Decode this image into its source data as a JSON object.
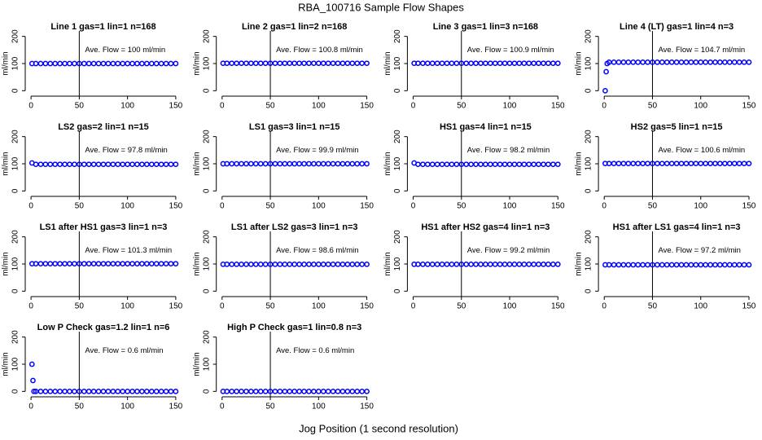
{
  "title": "RBA_100716  Sample Flow Shapes",
  "xlabel": "Jog Position (1 second resolution)",
  "chart_data": [
    {
      "type": "scatter",
      "title": "Line 1 gas=1 lin=1 n=168",
      "annotation": "Ave. Flow =  100  ml/min",
      "ylabel": "ml/min",
      "x": [
        1,
        5,
        10,
        15,
        20,
        25,
        30,
        35,
        40,
        45,
        50,
        55,
        60,
        65,
        70,
        75,
        80,
        85,
        90,
        95,
        100,
        105,
        110,
        115,
        120,
        125,
        130,
        135,
        140,
        145,
        150
      ],
      "values": [
        100,
        100,
        100,
        100,
        100,
        100,
        100,
        100,
        100,
        100,
        100,
        100,
        100,
        100,
        100,
        100,
        100,
        100,
        100,
        100,
        100,
        100,
        100,
        100,
        100,
        100,
        100,
        100,
        100,
        100,
        100
      ],
      "color": "#0000ff",
      "vline": 50,
      "xlim": [
        -6,
        156
      ],
      "ylim": [
        -20,
        220
      ],
      "xticks": [
        0,
        50,
        100,
        150
      ],
      "yticks": [
        0,
        100,
        200
      ]
    },
    {
      "type": "scatter",
      "title": "Line 2 gas=1 lin=2 n=168",
      "annotation": "Ave. Flow =  100.8  ml/min",
      "ylabel": "ml/min",
      "x": [
        1,
        5,
        10,
        15,
        20,
        25,
        30,
        35,
        40,
        45,
        50,
        55,
        60,
        65,
        70,
        75,
        80,
        85,
        90,
        95,
        100,
        105,
        110,
        115,
        120,
        125,
        130,
        135,
        140,
        145,
        150
      ],
      "values": [
        101,
        101,
        101,
        101,
        101,
        101,
        101,
        101,
        101,
        101,
        101,
        101,
        101,
        101,
        101,
        101,
        101,
        101,
        101,
        101,
        101,
        101,
        101,
        101,
        101,
        101,
        101,
        101,
        101,
        101,
        101
      ],
      "color": "#0000ff",
      "vline": 50,
      "xlim": [
        -6,
        156
      ],
      "ylim": [
        -20,
        220
      ],
      "xticks": [
        0,
        50,
        100,
        150
      ],
      "yticks": [
        0,
        100,
        200
      ]
    },
    {
      "type": "scatter",
      "title": "Line 3 gas=1 lin=3 n=168",
      "annotation": "Ave. Flow =  100.9  ml/min",
      "ylabel": "ml/min",
      "x": [
        1,
        5,
        10,
        15,
        20,
        25,
        30,
        35,
        40,
        45,
        50,
        55,
        60,
        65,
        70,
        75,
        80,
        85,
        90,
        95,
        100,
        105,
        110,
        115,
        120,
        125,
        130,
        135,
        140,
        145,
        150
      ],
      "values": [
        101,
        101,
        101,
        101,
        101,
        101,
        101,
        101,
        101,
        101,
        101,
        101,
        101,
        101,
        101,
        101,
        101,
        101,
        101,
        101,
        101,
        101,
        101,
        101,
        101,
        101,
        101,
        101,
        101,
        101,
        101
      ],
      "color": "#0000ff",
      "vline": 50,
      "xlim": [
        -6,
        156
      ],
      "ylim": [
        -20,
        220
      ],
      "xticks": [
        0,
        50,
        100,
        150
      ],
      "yticks": [
        0,
        100,
        200
      ]
    },
    {
      "type": "scatter",
      "title": "Line 4 (LT) gas=1 lin=4 n=3",
      "annotation": "Ave. Flow =  104.7  ml/min",
      "ylabel": "ml/min",
      "x": [
        1,
        2,
        3,
        5,
        10,
        15,
        20,
        25,
        30,
        35,
        40,
        45,
        50,
        55,
        60,
        65,
        70,
        75,
        80,
        85,
        90,
        95,
        100,
        105,
        110,
        115,
        120,
        125,
        130,
        135,
        140,
        145,
        150
      ],
      "values": [
        0,
        70,
        100,
        105,
        105,
        105,
        105,
        105,
        105,
        105,
        105,
        105,
        105,
        105,
        105,
        105,
        105,
        105,
        105,
        105,
        105,
        105,
        105,
        105,
        105,
        105,
        105,
        105,
        105,
        105,
        105,
        105,
        105
      ],
      "color": "#0000ff",
      "vline": 50,
      "xlim": [
        -6,
        156
      ],
      "ylim": [
        -20,
        220
      ],
      "xticks": [
        0,
        50,
        100,
        150
      ],
      "yticks": [
        0,
        100,
        200
      ]
    },
    {
      "type": "scatter",
      "title": "LS2 gas=2 lin=1 n=15",
      "annotation": "Ave. Flow =  97.8  ml/min",
      "ylabel": "ml/min",
      "x": [
        1,
        5,
        10,
        15,
        20,
        25,
        30,
        35,
        40,
        45,
        50,
        55,
        60,
        65,
        70,
        75,
        80,
        85,
        90,
        95,
        100,
        105,
        110,
        115,
        120,
        125,
        130,
        135,
        140,
        145,
        150
      ],
      "values": [
        103,
        98,
        98,
        98,
        98,
        98,
        98,
        98,
        98,
        98,
        98,
        98,
        98,
        98,
        98,
        98,
        98,
        98,
        98,
        98,
        98,
        98,
        98,
        98,
        98,
        98,
        98,
        98,
        98,
        98,
        98
      ],
      "color": "#0000ff",
      "vline": 50,
      "xlim": [
        -6,
        156
      ],
      "ylim": [
        -20,
        220
      ],
      "xticks": [
        0,
        50,
        100,
        150
      ],
      "yticks": [
        0,
        100,
        200
      ]
    },
    {
      "type": "scatter",
      "title": "LS1 gas=3 lin=1 n=15",
      "annotation": "Ave. Flow =  99.9  ml/min",
      "ylabel": "ml/min",
      "x": [
        1,
        5,
        10,
        15,
        20,
        25,
        30,
        35,
        40,
        45,
        50,
        55,
        60,
        65,
        70,
        75,
        80,
        85,
        90,
        95,
        100,
        105,
        110,
        115,
        120,
        125,
        130,
        135,
        140,
        145,
        150
      ],
      "values": [
        100,
        100,
        100,
        100,
        100,
        100,
        100,
        100,
        100,
        100,
        100,
        100,
        100,
        100,
        100,
        100,
        100,
        100,
        100,
        100,
        100,
        100,
        100,
        100,
        100,
        100,
        100,
        100,
        100,
        100,
        100
      ],
      "color": "#0000ff",
      "vline": 50,
      "xlim": [
        -6,
        156
      ],
      "ylim": [
        -20,
        220
      ],
      "xticks": [
        0,
        50,
        100,
        150
      ],
      "yticks": [
        0,
        100,
        200
      ]
    },
    {
      "type": "scatter",
      "title": "HS1 gas=4 lin=1 n=15",
      "annotation": "Ave. Flow =  98.2  ml/min",
      "ylabel": "ml/min",
      "x": [
        1,
        5,
        10,
        15,
        20,
        25,
        30,
        35,
        40,
        45,
        50,
        55,
        60,
        65,
        70,
        75,
        80,
        85,
        90,
        95,
        100,
        105,
        110,
        115,
        120,
        125,
        130,
        135,
        140,
        145,
        150
      ],
      "values": [
        103,
        98,
        98,
        98,
        98,
        98,
        98,
        98,
        98,
        98,
        98,
        98,
        98,
        98,
        98,
        98,
        98,
        98,
        98,
        98,
        98,
        98,
        98,
        98,
        98,
        98,
        98,
        98,
        98,
        98,
        98
      ],
      "color": "#0000ff",
      "vline": 50,
      "xlim": [
        -6,
        156
      ],
      "ylim": [
        -20,
        220
      ],
      "xticks": [
        0,
        50,
        100,
        150
      ],
      "yticks": [
        0,
        100,
        200
      ]
    },
    {
      "type": "scatter",
      "title": "HS2 gas=5 lin=1 n=15",
      "annotation": "Ave. Flow =  100.6  ml/min",
      "ylabel": "ml/min",
      "x": [
        1,
        5,
        10,
        15,
        20,
        25,
        30,
        35,
        40,
        45,
        50,
        55,
        60,
        65,
        70,
        75,
        80,
        85,
        90,
        95,
        100,
        105,
        110,
        115,
        120,
        125,
        130,
        135,
        140,
        145,
        150
      ],
      "values": [
        101,
        101,
        101,
        101,
        101,
        101,
        101,
        101,
        101,
        101,
        101,
        101,
        101,
        101,
        101,
        101,
        101,
        101,
        101,
        101,
        101,
        101,
        101,
        101,
        101,
        101,
        101,
        101,
        101,
        101,
        101
      ],
      "color": "#0000ff",
      "vline": 50,
      "xlim": [
        -6,
        156
      ],
      "ylim": [
        -20,
        220
      ],
      "xticks": [
        0,
        50,
        100,
        150
      ],
      "yticks": [
        0,
        100,
        200
      ]
    },
    {
      "type": "scatter",
      "title": "LS1 after HS1 gas=3 lin=1 n=3",
      "annotation": "Ave. Flow =  101.3  ml/min",
      "ylabel": "ml/min",
      "x": [
        1,
        5,
        10,
        15,
        20,
        25,
        30,
        35,
        40,
        45,
        50,
        55,
        60,
        65,
        70,
        75,
        80,
        85,
        90,
        95,
        100,
        105,
        110,
        115,
        120,
        125,
        130,
        135,
        140,
        145,
        150
      ],
      "values": [
        101,
        101,
        101,
        101,
        101,
        101,
        101,
        101,
        101,
        101,
        101,
        101,
        101,
        101,
        101,
        101,
        101,
        101,
        101,
        101,
        101,
        101,
        101,
        101,
        101,
        101,
        101,
        101,
        101,
        101,
        101
      ],
      "color": "#0000ff",
      "vline": 50,
      "xlim": [
        -6,
        156
      ],
      "ylim": [
        -20,
        220
      ],
      "xticks": [
        0,
        50,
        100,
        150
      ],
      "yticks": [
        0,
        100,
        200
      ]
    },
    {
      "type": "scatter",
      "title": "LS1 after LS2 gas=3 lin=1 n=3",
      "annotation": "Ave. Flow =  98.6  ml/min",
      "ylabel": "ml/min",
      "x": [
        1,
        5,
        10,
        15,
        20,
        25,
        30,
        35,
        40,
        45,
        50,
        55,
        60,
        65,
        70,
        75,
        80,
        85,
        90,
        95,
        100,
        105,
        110,
        115,
        120,
        125,
        130,
        135,
        140,
        145,
        150
      ],
      "values": [
        99,
        99,
        99,
        99,
        99,
        99,
        99,
        99,
        99,
        99,
        99,
        99,
        99,
        99,
        99,
        99,
        99,
        99,
        99,
        99,
        99,
        99,
        99,
        99,
        99,
        99,
        99,
        99,
        99,
        99,
        99
      ],
      "color": "#0000ff",
      "vline": 50,
      "xlim": [
        -6,
        156
      ],
      "ylim": [
        -20,
        220
      ],
      "xticks": [
        0,
        50,
        100,
        150
      ],
      "yticks": [
        0,
        100,
        200
      ]
    },
    {
      "type": "scatter",
      "title": "HS1 after HS2 gas=4 lin=1 n=3",
      "annotation": "Ave. Flow =  99.2  ml/min",
      "ylabel": "ml/min",
      "x": [
        1,
        5,
        10,
        15,
        20,
        25,
        30,
        35,
        40,
        45,
        50,
        55,
        60,
        65,
        70,
        75,
        80,
        85,
        90,
        95,
        100,
        105,
        110,
        115,
        120,
        125,
        130,
        135,
        140,
        145,
        150
      ],
      "values": [
        99,
        99,
        99,
        99,
        99,
        99,
        99,
        99,
        99,
        99,
        99,
        99,
        99,
        99,
        99,
        99,
        99,
        99,
        99,
        99,
        99,
        99,
        99,
        99,
        99,
        99,
        99,
        99,
        99,
        99,
        99
      ],
      "color": "#0000ff",
      "vline": 50,
      "xlim": [
        -6,
        156
      ],
      "ylim": [
        -20,
        220
      ],
      "xticks": [
        0,
        50,
        100,
        150
      ],
      "yticks": [
        0,
        100,
        200
      ]
    },
    {
      "type": "scatter",
      "title": "HS1 after LS1 gas=4 lin=1 n=3",
      "annotation": "Ave. Flow =  97.2  ml/min",
      "ylabel": "ml/min",
      "x": [
        1,
        5,
        10,
        15,
        20,
        25,
        30,
        35,
        40,
        45,
        50,
        55,
        60,
        65,
        70,
        75,
        80,
        85,
        90,
        95,
        100,
        105,
        110,
        115,
        120,
        125,
        130,
        135,
        140,
        145,
        150
      ],
      "values": [
        97,
        97,
        97,
        97,
        97,
        97,
        97,
        97,
        97,
        97,
        97,
        97,
        97,
        97,
        97,
        97,
        97,
        97,
        97,
        97,
        97,
        97,
        97,
        97,
        97,
        97,
        97,
        97,
        97,
        97,
        97
      ],
      "color": "#0000ff",
      "vline": 50,
      "xlim": [
        -6,
        156
      ],
      "ylim": [
        -20,
        220
      ],
      "xticks": [
        0,
        50,
        100,
        150
      ],
      "yticks": [
        0,
        100,
        200
      ]
    },
    {
      "type": "scatter",
      "title": "Low P Check gas=1.2 lin=1 n=6",
      "annotation": "Ave. Flow =  0.6  ml/min",
      "ylabel": "ml/min",
      "x": [
        1,
        2,
        3,
        5,
        10,
        15,
        20,
        25,
        30,
        35,
        40,
        45,
        50,
        55,
        60,
        65,
        70,
        75,
        80,
        85,
        90,
        95,
        100,
        105,
        110,
        115,
        120,
        125,
        130,
        135,
        140,
        145,
        150
      ],
      "values": [
        100,
        40,
        0,
        0,
        0,
        0,
        0,
        0,
        0,
        0,
        0,
        0,
        0,
        0,
        0,
        0,
        0,
        0,
        0,
        0,
        0,
        0,
        0,
        0,
        0,
        0,
        0,
        0,
        0,
        0,
        0,
        0,
        0
      ],
      "color": "#0000ff",
      "vline": 50,
      "xlim": [
        -6,
        156
      ],
      "ylim": [
        -20,
        220
      ],
      "xticks": [
        0,
        50,
        100,
        150
      ],
      "yticks": [
        0,
        100,
        200
      ]
    },
    {
      "type": "scatter",
      "title": "High P Check gas=1 lin=0.8 n=3",
      "annotation": "Ave. Flow =  0.6  ml/min",
      "ylabel": "ml/min",
      "x": [
        1,
        5,
        10,
        15,
        20,
        25,
        30,
        35,
        40,
        45,
        50,
        55,
        60,
        65,
        70,
        75,
        80,
        85,
        90,
        95,
        100,
        105,
        110,
        115,
        120,
        125,
        130,
        135,
        140,
        145,
        150
      ],
      "values": [
        0,
        0,
        0,
        0,
        0,
        0,
        0,
        0,
        0,
        0,
        0,
        0,
        0,
        0,
        0,
        0,
        0,
        0,
        0,
        0,
        0,
        0,
        0,
        0,
        0,
        0,
        0,
        0,
        0,
        0,
        0
      ],
      "color": "#0000ff",
      "vline": 50,
      "xlim": [
        -6,
        156
      ],
      "ylim": [
        -20,
        220
      ],
      "xticks": [
        0,
        50,
        100,
        150
      ],
      "yticks": [
        0,
        100,
        200
      ]
    }
  ]
}
